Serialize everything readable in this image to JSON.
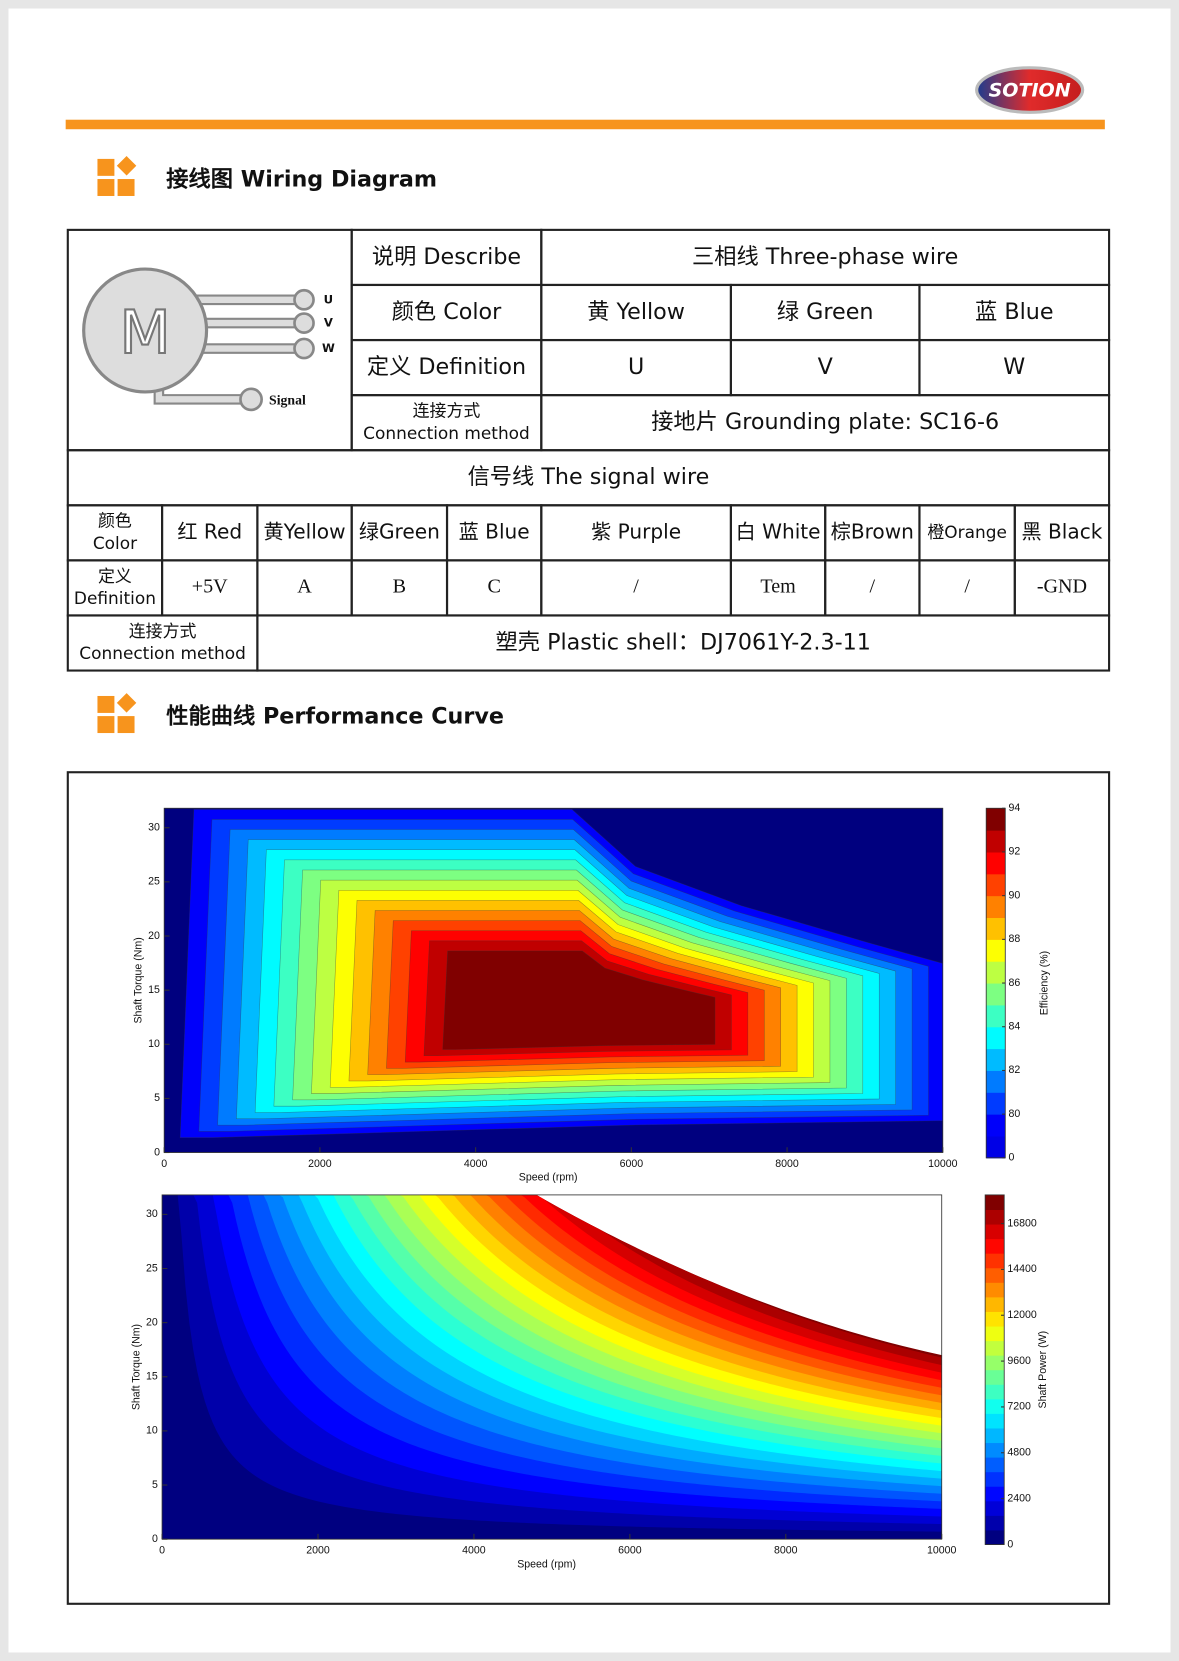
{
  "header": {
    "logo": "SOTION"
  },
  "wiring": {
    "title": "接线图 Wiring Diagram",
    "figure": {
      "motor": "M",
      "terminals": [
        "U",
        "V",
        "W"
      ],
      "signal": "Signal"
    },
    "table": {
      "describe_label": "说明 Describe",
      "describe_value": "三相线 Three-phase wire",
      "color_label": "颜色 Color",
      "colors": [
        "黄 Yellow",
        "绿 Green",
        "蓝 Blue"
      ],
      "definition_label": "定义 Definition",
      "definitions": [
        "U",
        "V",
        "W"
      ],
      "connection_label": [
        "连接方式",
        "Connection method"
      ],
      "connection_value": "接地片 Grounding plate: SC16-6",
      "signal_title": "信号线 The signal wire",
      "signal_color_label": [
        "颜色",
        "Color"
      ],
      "signal_colors": [
        "红 Red",
        "黄Yellow",
        "绿Green",
        "蓝 Blue",
        "紫 Purple",
        "白 White",
        "棕Brown",
        "橙Orange",
        "黑 Black"
      ],
      "signal_definition_label": [
        "定义",
        "Definition"
      ],
      "signal_definitions": [
        "+5V",
        "A",
        "B",
        "C",
        "/",
        "Tem",
        "/",
        "/",
        "-GND"
      ],
      "signal_connection_label": [
        "连接方式",
        "Connection method"
      ],
      "signal_connection_value": "塑壳 Plastic shell：DJ7061Y-2.3-11"
    }
  },
  "performance": {
    "title": "性能曲线 Performance Curve",
    "charts": [
      {
        "type": "contour",
        "xlabel": "Speed (rpm)",
        "ylabel": "Shaft Torque (Nm)",
        "colorbar_label": "Efficiency (%)",
        "xlim": [
          0,
          10000
        ],
        "xticks": [
          0,
          2000,
          4000,
          6000,
          8000,
          10000
        ],
        "ylim": [
          0,
          31.8
        ],
        "yticks": [
          0,
          5,
          10,
          15,
          20,
          25,
          30
        ],
        "colorbar_ticks": [
          0,
          80,
          82,
          84,
          86,
          88,
          90,
          92,
          94
        ]
      },
      {
        "type": "contour",
        "xlabel": "Speed (rpm)",
        "ylabel": "Shaft Torque (Nm)",
        "colorbar_label": "Shaft Power (W)",
        "xlim": [
          0,
          10000
        ],
        "xticks": [
          0,
          2000,
          4000,
          6000,
          8000,
          10000
        ],
        "ylim": [
          0,
          31.8
        ],
        "yticks": [
          0,
          5,
          10,
          15,
          20,
          25,
          30
        ],
        "colorbar_lim": [
          0,
          18300
        ],
        "colorbar_ticks": [
          0,
          2400,
          4800,
          7200,
          9600,
          12000,
          14400,
          16800
        ]
      }
    ]
  }
}
